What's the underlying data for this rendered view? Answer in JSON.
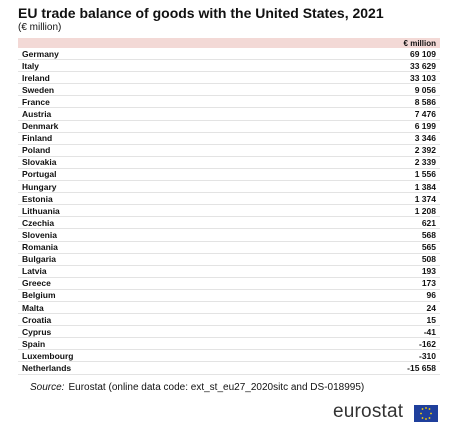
{
  "header": {
    "title": "EU trade balance of goods with the United States, 2021",
    "subtitle": "(€ million)"
  },
  "table": {
    "columns": [
      "€ million"
    ],
    "rows": [
      [
        "Germany",
        "69 109"
      ],
      [
        "Italy",
        "33 629"
      ],
      [
        "Ireland",
        "33 103"
      ],
      [
        "Sweden",
        "9 056"
      ],
      [
        "France",
        "8 586"
      ],
      [
        "Austria",
        "7 476"
      ],
      [
        "Denmark",
        "6 199"
      ],
      [
        "Finland",
        "3 346"
      ],
      [
        "Poland",
        "2 392"
      ],
      [
        "Slovakia",
        "2 339"
      ],
      [
        "Portugal",
        "1 556"
      ],
      [
        "Hungary",
        "1 384"
      ],
      [
        "Estonia",
        "1 374"
      ],
      [
        "Lithuania",
        "1 208"
      ],
      [
        "Czechia",
        "621"
      ],
      [
        "Slovenia",
        "568"
      ],
      [
        "Romania",
        "565"
      ],
      [
        "Bulgaria",
        "508"
      ],
      [
        "Latvia",
        "193"
      ],
      [
        "Greece",
        "173"
      ],
      [
        "Belgium",
        "96"
      ],
      [
        "Malta",
        "24"
      ],
      [
        "Croatia",
        "15"
      ],
      [
        "Cyprus",
        "-41"
      ],
      [
        "Spain",
        "-162"
      ],
      [
        "Luxembourg",
        "-310"
      ],
      [
        "Netherlands",
        "-15 658"
      ]
    ]
  },
  "footer": {
    "source_label": "Source:",
    "source_text": "Eurostat (online data code: ext_st_eu27_2020sitc and DS-018995)",
    "logo": "eurostat"
  }
}
